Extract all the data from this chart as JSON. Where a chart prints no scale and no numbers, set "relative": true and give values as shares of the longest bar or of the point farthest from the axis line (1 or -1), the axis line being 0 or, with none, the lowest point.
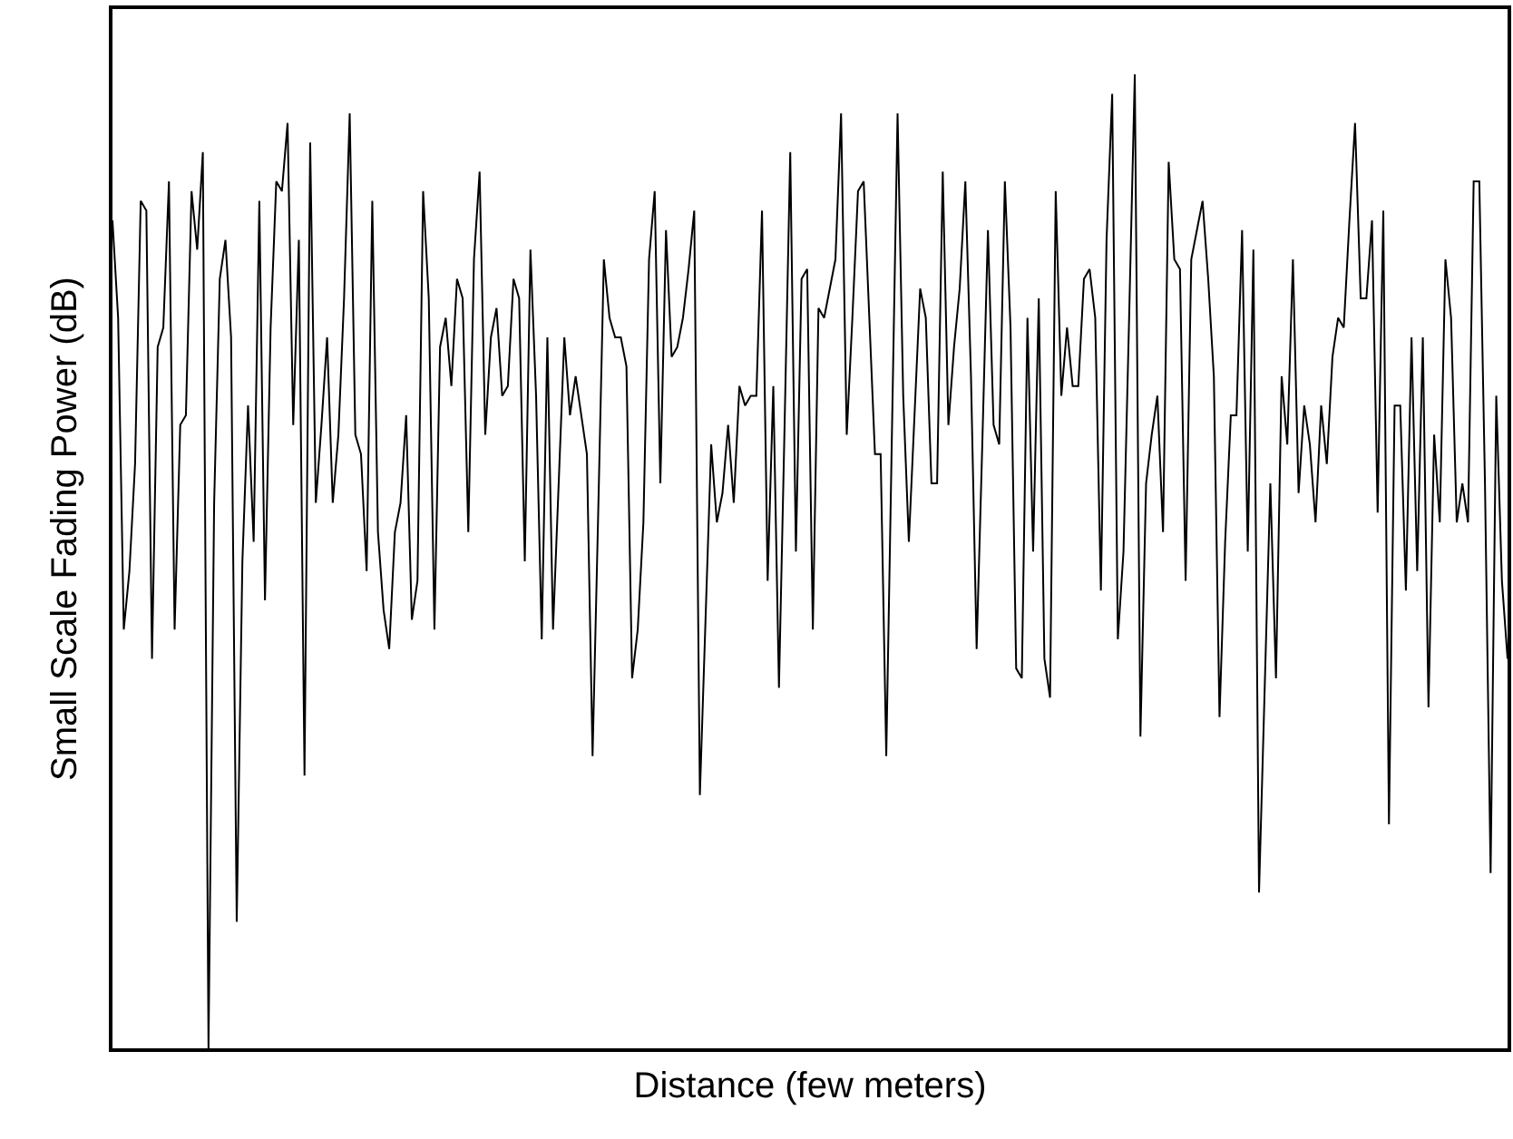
{
  "chart_data": {
    "type": "line",
    "relative": true,
    "xlabel": "Distance (few meters)",
    "ylabel": "Small Scale Fading Power (dB)",
    "marker": "none",
    "line_style": "solid",
    "categories": [
      null,
      null,
      null,
      null,
      null,
      null,
      null,
      null,
      null,
      null,
      null,
      null,
      null,
      null,
      null,
      null,
      null,
      null,
      null,
      null,
      null,
      null,
      null,
      null,
      null,
      null,
      null,
      null,
      null,
      null,
      null,
      null,
      null,
      null,
      null,
      null,
      null,
      null,
      null,
      null,
      null,
      null,
      null,
      null,
      null,
      null,
      null,
      null,
      null,
      null,
      null,
      null,
      null,
      null,
      null,
      null,
      null,
      null,
      null,
      null,
      null,
      null,
      null,
      null,
      null,
      null,
      null,
      null,
      null,
      null,
      null,
      null,
      null,
      null,
      null,
      null,
      null,
      null,
      null,
      null,
      null,
      null,
      null,
      null,
      null,
      null,
      null,
      null,
      null,
      null,
      null,
      null,
      null,
      null,
      null,
      null,
      null,
      null,
      null,
      null,
      null,
      null,
      null,
      null,
      null,
      null,
      null,
      null,
      null,
      null,
      null,
      null,
      null,
      null,
      null,
      null,
      null,
      null,
      null,
      null,
      null,
      null,
      null,
      null,
      null,
      null,
      null,
      null,
      null,
      null,
      null,
      null,
      null,
      null,
      null,
      null,
      null,
      null,
      null,
      null,
      null,
      null,
      null,
      null,
      null,
      null,
      null,
      null,
      null,
      null,
      null,
      null,
      null,
      null,
      null,
      null,
      null,
      null,
      null,
      null,
      null,
      null,
      null,
      null,
      null,
      null,
      null,
      null,
      null,
      null,
      null,
      null,
      null,
      null,
      null,
      null,
      null,
      null,
      null,
      null,
      null,
      null,
      null,
      null,
      null,
      null,
      null,
      null,
      null,
      null,
      null,
      null,
      null,
      null,
      null,
      null,
      null,
      null,
      null,
      null,
      null,
      null,
      null,
      null,
      null,
      null,
      null,
      null,
      null,
      null,
      null,
      null,
      null,
      null,
      null,
      null,
      null,
      null,
      null,
      null,
      null,
      null,
      null,
      null,
      null,
      null,
      null,
      null,
      null,
      null,
      null,
      null,
      null,
      null,
      null,
      null,
      null,
      null,
      null,
      null,
      null,
      null,
      null,
      null,
      null,
      null,
      null,
      null
    ],
    "series": [
      {
        "color": "#000000",
        "values": [
          0.85,
          0.75,
          0.43,
          0.49,
          0.6,
          0.87,
          0.86,
          0.4,
          0.72,
          0.74,
          0.89,
          0.43,
          0.64,
          0.65,
          0.88,
          0.82,
          0.92,
          0,
          0.56,
          0.79,
          0.83,
          0.73,
          0.13,
          0.5,
          0.66,
          0.52,
          0.87,
          0.46,
          0.74,
          0.89,
          0.88,
          0.95,
          0.64,
          0.83,
          0.28,
          0.93,
          0.56,
          0.64,
          0.73,
          0.56,
          0.63,
          0.77,
          0.96,
          0.63,
          0.61,
          0.49,
          0.87,
          0.53,
          0.45,
          0.41,
          0.53,
          0.56,
          0.65,
          0.44,
          0.48,
          0.88,
          0.77,
          0.43,
          0.72,
          0.75,
          0.68,
          0.79,
          0.77,
          0.53,
          0.81,
          0.9,
          0.63,
          0.73,
          0.76,
          0.67,
          0.68,
          0.79,
          0.77,
          0.5,
          0.82,
          0.67,
          0.42,
          0.73,
          0.43,
          0.58,
          0.73,
          0.65,
          0.69,
          0.65,
          0.61,
          0.3,
          0.55,
          0.81,
          0.75,
          0.73,
          0.73,
          0.7,
          0.38,
          0.43,
          0.54,
          0.81,
          0.88,
          0.58,
          0.84,
          0.71,
          0.72,
          0.75,
          0.8,
          0.86,
          0.26,
          0.44,
          0.62,
          0.54,
          0.57,
          0.64,
          0.56,
          0.68,
          0.66,
          0.67,
          0.67,
          0.86,
          0.48,
          0.68,
          0.37,
          0.64,
          0.92,
          0.51,
          0.79,
          0.8,
          0.43,
          0.76,
          0.75,
          0.78,
          0.81,
          0.96,
          0.63,
          0.75,
          0.88,
          0.89,
          0.75,
          0.61,
          0.61,
          0.3,
          0.63,
          0.96,
          0.67,
          0.52,
          0.65,
          0.78,
          0.75,
          0.58,
          0.58,
          0.9,
          0.64,
          0.72,
          0.78,
          0.89,
          0.69,
          0.41,
          0.62,
          0.84,
          0.64,
          0.62,
          0.89,
          0.74,
          0.39,
          0.38,
          0.75,
          0.51,
          0.77,
          0.4,
          0.36,
          0.88,
          0.67,
          0.74,
          0.68,
          0.68,
          0.79,
          0.8,
          0.75,
          0.47,
          0.83,
          0.98,
          0.42,
          0.51,
          0.75,
          1,
          0.32,
          0.58,
          0.63,
          0.67,
          0.53,
          0.91,
          0.81,
          0.8,
          0.48,
          0.81,
          0.84,
          0.87,
          0.79,
          0.69,
          0.34,
          0.52,
          0.65,
          0.65,
          0.84,
          0.51,
          0.82,
          0.16,
          0.37,
          0.58,
          0.38,
          0.69,
          0.62,
          0.81,
          0.57,
          0.66,
          0.62,
          0.54,
          0.66,
          0.6,
          0.71,
          0.75,
          0.74,
          0.85,
          0.95,
          0.77,
          0.77,
          0.85,
          0.55,
          0.86,
          0.23,
          0.66,
          0.66,
          0.47,
          0.73,
          0.49,
          0.73,
          0.35,
          0.63,
          0.54,
          0.81,
          0.75,
          0.54,
          0.58,
          0.54,
          0.89,
          0.89,
          0.58,
          0.18,
          0.67,
          0.48,
          0.4
        ]
      }
    ]
  }
}
